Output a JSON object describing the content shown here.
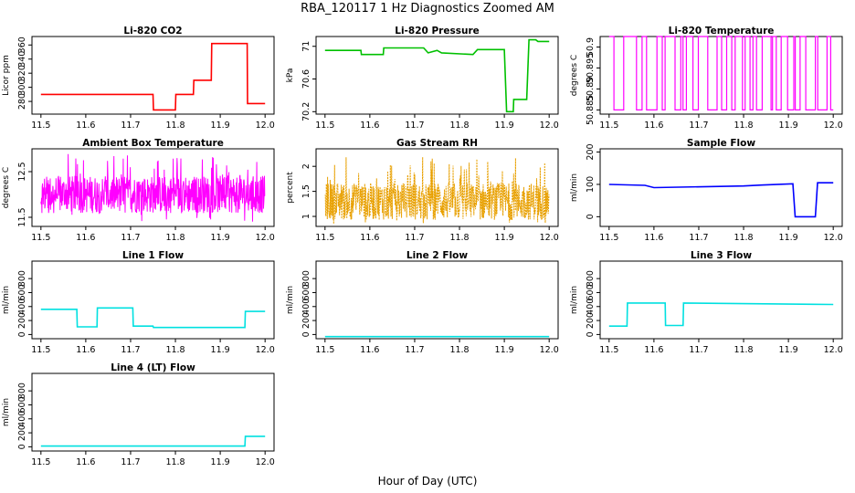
{
  "figure": {
    "title": "RBA_120117  1 Hz Diagnostics Zoomed AM",
    "xlabel": "Hour of Day (UTC)"
  },
  "chart_data": [
    {
      "type": "line",
      "title": "Li-820 CO2",
      "ylabel": "Licor ppm",
      "color": "#ff0000",
      "xlim": [
        11.48,
        12.02
      ],
      "ylim": [
        262,
        372
      ],
      "xticks": [
        "11.5",
        "11.6",
        "11.7",
        "11.8",
        "11.9",
        "12.0"
      ],
      "yticks": [
        280,
        300,
        320,
        340,
        360
      ],
      "x": [
        11.5,
        11.75,
        11.751,
        11.8,
        11.801,
        11.84,
        11.841,
        11.88,
        11.881,
        11.96,
        11.961,
        12.0
      ],
      "y": [
        290,
        290,
        268,
        268,
        290,
        290,
        310,
        310,
        362,
        362,
        277,
        277
      ]
    },
    {
      "type": "line",
      "title": "Li-820 Pressure",
      "ylabel": "kPa",
      "color": "#00c000",
      "xlim": [
        11.48,
        12.02
      ],
      "ylim": [
        70.17,
        71.12
      ],
      "xticks": [
        "11.5",
        "11.6",
        "11.7",
        "11.8",
        "11.9",
        "12.0"
      ],
      "yticks": [
        70.2,
        70.6,
        71.0
      ],
      "x": [
        11.5,
        11.58,
        11.581,
        11.63,
        11.631,
        11.72,
        11.73,
        11.75,
        11.76,
        11.83,
        11.84,
        11.9,
        11.905,
        11.92,
        11.921,
        11.95,
        11.955,
        11.97,
        11.975,
        12.0
      ],
      "y": [
        70.95,
        70.95,
        70.9,
        70.9,
        70.98,
        70.98,
        70.92,
        70.95,
        70.92,
        70.9,
        70.96,
        70.96,
        70.2,
        70.2,
        70.35,
        70.35,
        71.08,
        71.08,
        71.06,
        71.06
      ]
    },
    {
      "type": "line",
      "title": "Li-820 Temperature",
      "ylabel": "degrees C",
      "color": "#ff00ff",
      "xlim": [
        11.48,
        12.02
      ],
      "ylim": [
        50.884,
        50.9025
      ],
      "xticks": [
        "11.5",
        "11.6",
        "11.7",
        "11.8",
        "11.9",
        "12.0"
      ],
      "yticks": [
        50.885,
        50.89,
        50.895,
        50.9
      ],
      "levels": [
        50.885,
        50.9025
      ],
      "pattern": "switching between two levels"
    },
    {
      "type": "line",
      "title": "Ambient Box Temperature",
      "ylabel": "degrees C",
      "color": "#ff00ff",
      "xlim": [
        11.48,
        12.02
      ],
      "ylim": [
        11.3,
        13.0
      ],
      "xticks": [
        "11.5",
        "11.6",
        "11.7",
        "11.8",
        "11.9",
        "12.0"
      ],
      "yticks": [
        11.5,
        12.5
      ],
      "mean": 12.0,
      "range": [
        11.4,
        12.9
      ],
      "pattern": "noisy"
    },
    {
      "type": "line",
      "title": "Gas Stream RH",
      "ylabel": "percent",
      "color": "#e8a000",
      "xlim": [
        11.48,
        12.02
      ],
      "ylim": [
        0.8,
        2.35
      ],
      "xticks": [
        "11.5",
        "11.6",
        "11.7",
        "11.8",
        "11.9",
        "12.0"
      ],
      "yticks": [
        1.0,
        1.5,
        2.0
      ],
      "mean": 1.3,
      "range": [
        0.85,
        2.2
      ],
      "pattern": "noisy with spikes"
    },
    {
      "type": "line",
      "title": "Sample Flow",
      "ylabel": "ml/min",
      "color": "#0000ff",
      "xlim": [
        11.48,
        12.02
      ],
      "ylim": [
        -30,
        210
      ],
      "xticks": [
        "11.5",
        "11.6",
        "11.7",
        "11.8",
        "11.9",
        "12.0"
      ],
      "yticks": [
        0,
        100,
        200
      ],
      "x": [
        11.5,
        11.58,
        11.6,
        11.8,
        11.84,
        11.91,
        11.915,
        11.96,
        11.965,
        12.0
      ],
      "y": [
        100,
        97,
        90,
        95,
        98,
        102,
        0,
        0,
        105,
        105
      ]
    },
    {
      "type": "line",
      "title": "Line 1 Flow",
      "ylabel": "ml/min",
      "color": "#00e0e0",
      "xlim": [
        11.48,
        12.02
      ],
      "ylim": [
        -60,
        1050
      ],
      "xticks": [
        "11.5",
        "11.6",
        "11.7",
        "11.8",
        "11.9",
        "12.0"
      ],
      "yticks": [
        0,
        200,
        400,
        600,
        800
      ],
      "x": [
        11.5,
        11.58,
        11.581,
        11.625,
        11.626,
        11.705,
        11.706,
        11.75,
        11.751,
        11.955,
        11.956,
        12.0
      ],
      "y": [
        360,
        360,
        110,
        110,
        380,
        380,
        120,
        120,
        100,
        100,
        330,
        330
      ]
    },
    {
      "type": "line",
      "title": "Line 2 Flow",
      "ylabel": "ml/min",
      "color": "#00e0e0",
      "xlim": [
        11.48,
        12.02
      ],
      "ylim": [
        -60,
        1050
      ],
      "xticks": [
        "11.5",
        "11.6",
        "11.7",
        "11.8",
        "11.9",
        "12.0"
      ],
      "yticks": [
        0,
        200,
        400,
        600,
        800
      ],
      "x": [
        11.5,
        12.0
      ],
      "y": [
        -30,
        -30
      ]
    },
    {
      "type": "line",
      "title": "Line 3 Flow",
      "ylabel": "ml/min",
      "color": "#00e0e0",
      "xlim": [
        11.48,
        12.02
      ],
      "ylim": [
        -60,
        1050
      ],
      "xticks": [
        "11.5",
        "11.6",
        "11.7",
        "11.8",
        "11.9",
        "12.0"
      ],
      "yticks": [
        0,
        200,
        400,
        600,
        800
      ],
      "x": [
        11.5,
        11.54,
        11.541,
        11.625,
        11.626,
        11.665,
        11.666,
        12.0
      ],
      "y": [
        120,
        120,
        450,
        450,
        130,
        130,
        450,
        430
      ]
    },
    {
      "type": "line",
      "title": "Line 4 (LT) Flow",
      "ylabel": "ml/min",
      "color": "#00e0e0",
      "xlim": [
        11.48,
        12.02
      ],
      "ylim": [
        -60,
        1050
      ],
      "xticks": [
        "11.5",
        "11.6",
        "11.7",
        "11.8",
        "11.9",
        "12.0"
      ],
      "yticks": [
        0,
        200,
        400,
        600,
        800
      ],
      "x": [
        11.5,
        11.955,
        11.956,
        12.0
      ],
      "y": [
        10,
        10,
        150,
        150
      ]
    }
  ]
}
